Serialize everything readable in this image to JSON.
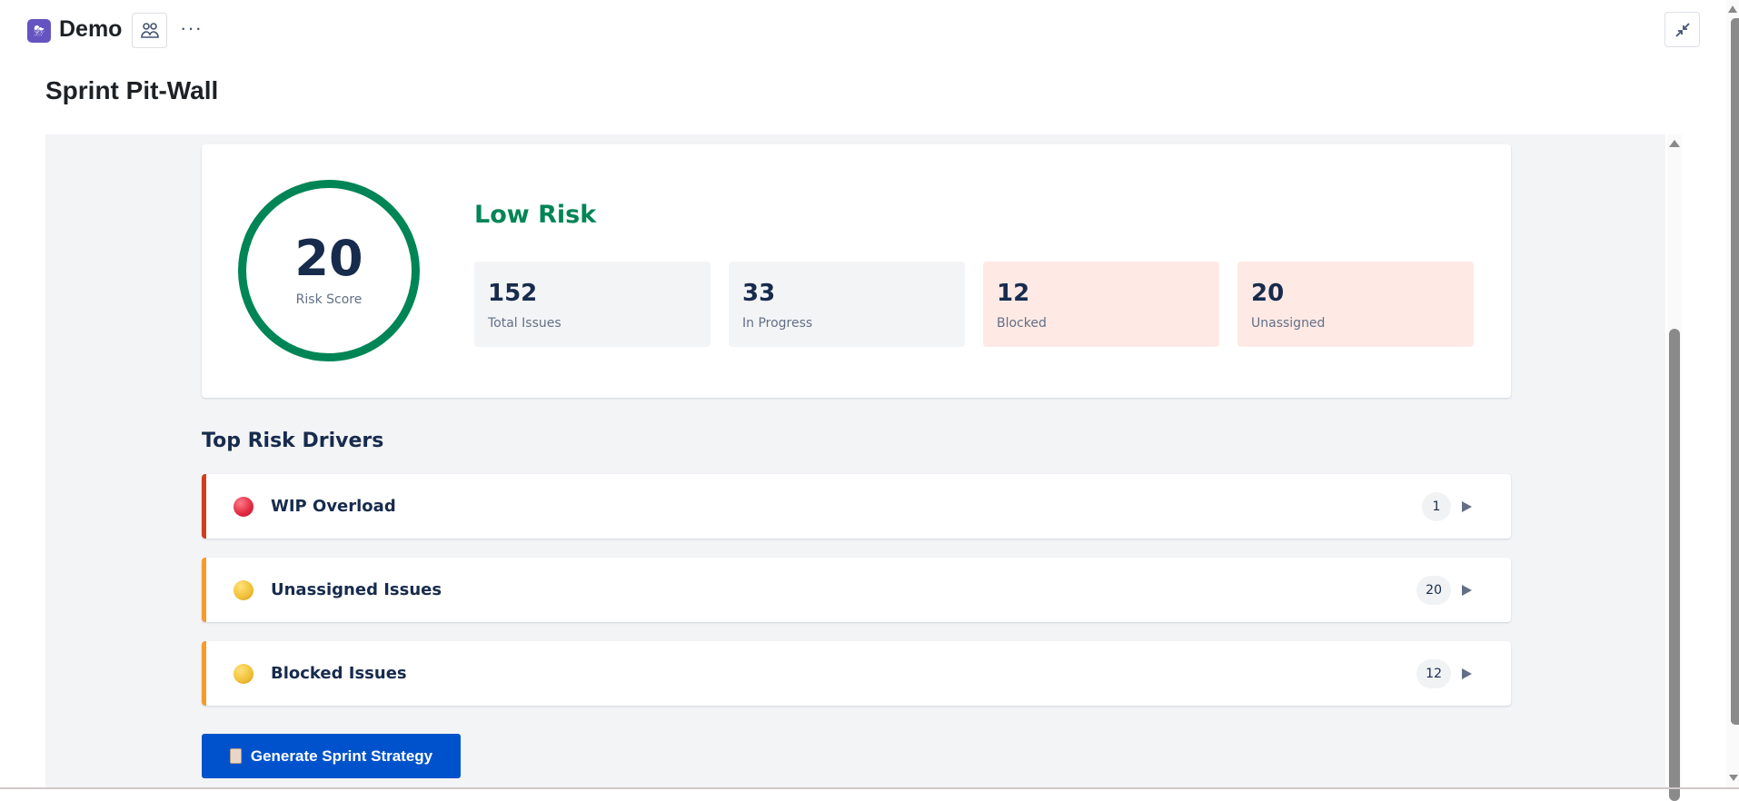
{
  "header": {
    "app_name": "Demo",
    "logo_icon": "storm-cloud-icon",
    "people_icon": "people-icon",
    "more_icon": "more-dots-icon",
    "more_label": "···",
    "minimize_icon": "minimize-icon"
  },
  "page": {
    "title": "Sprint Pit-Wall"
  },
  "summary": {
    "risk_score": "20",
    "risk_score_label": "Risk Score",
    "risk_level": "Low Risk",
    "risk_color": "#008556",
    "stats": [
      {
        "value": "152",
        "label": "Total Issues",
        "tone": "neutral"
      },
      {
        "value": "33",
        "label": "In Progress",
        "tone": "neutral"
      },
      {
        "value": "12",
        "label": "Blocked",
        "tone": "warning"
      },
      {
        "value": "20",
        "label": "Unassigned",
        "tone": "warning"
      }
    ]
  },
  "drivers": {
    "title": "Top Risk Drivers",
    "items": [
      {
        "label": "WIP Overload",
        "count": "1",
        "severity": "high",
        "color": "#d13d1c",
        "indicator": "red-circle-icon"
      },
      {
        "label": "Unassigned Issues",
        "count": "20",
        "severity": "medium",
        "color": "#f79a2a",
        "indicator": "yellow-circle-icon"
      },
      {
        "label": "Blocked Issues",
        "count": "12",
        "severity": "medium",
        "color": "#f79a2a",
        "indicator": "yellow-circle-icon"
      }
    ]
  },
  "actions": {
    "generate_label": "Generate Sprint Strategy",
    "generate_icon": "clipboard-icon",
    "button_color": "#0052cc"
  }
}
